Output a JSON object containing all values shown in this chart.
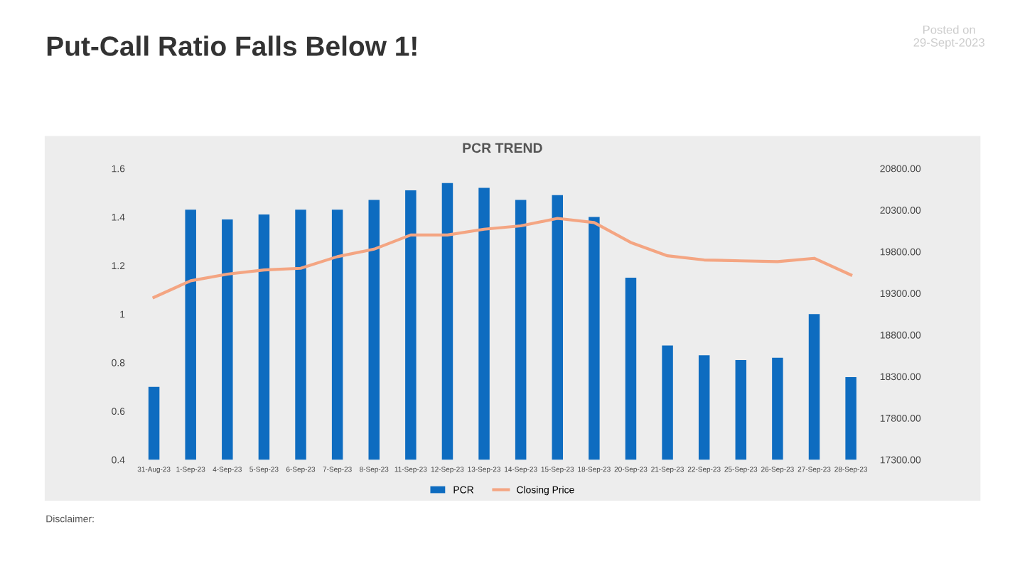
{
  "chart_data": {
    "type": "bar",
    "title": "Put-Call Ratio Falls Below 1!",
    "subtitle": "PCR TREND",
    "categories": [
      "31-Aug-23",
      "1-Sep-23",
      "4-Sep-23",
      "5-Sep-23",
      "6-Sep-23",
      "7-Sep-23",
      "8-Sep-23",
      "11-Sep-23",
      "12-Sep-23",
      "13-Sep-23",
      "14-Sep-23",
      "15-Sep-23",
      "18-Sep-23",
      "20-Sep-23",
      "21-Sep-23",
      "22-Sep-23",
      "25-Sep-23",
      "26-Sep-23",
      "27-Sep-23",
      "28-Sep-23"
    ],
    "series": [
      {
        "name": "PCR",
        "color": "#0e6cc0",
        "values": [
          0.7,
          1.43,
          1.39,
          1.41,
          1.43,
          1.43,
          1.47,
          1.51,
          1.54,
          1.52,
          1.47,
          1.49,
          1.4,
          1.15,
          0.87,
          0.83,
          0.81,
          0.82,
          1.0,
          0.74
        ]
      },
      {
        "name": "Closing Price",
        "type": "line",
        "axis": "y2",
        "color": "#f4a582",
        "values": [
          19250,
          19450,
          19530,
          19580,
          19600,
          19740,
          19830,
          20000,
          20000,
          20070,
          20110,
          20200,
          20150,
          19910,
          19750,
          19700,
          19690,
          19680,
          19720,
          19520
        ]
      }
    ],
    "ylim": [
      0.4,
      1.6
    ],
    "yticks": [
      0.4,
      0.6,
      0.8,
      1,
      1.2,
      1.4,
      1.6
    ],
    "y2lim": [
      17300,
      20800
    ],
    "y2ticks": [
      {
        "value": 17300,
        "label": "17300.00"
      },
      {
        "value": 17800,
        "label": "17800.00"
      },
      {
        "value": 18300,
        "label": "18300.00"
      },
      {
        "value": 18800,
        "label": "18800.00"
      },
      {
        "value": 19300,
        "label": "19300.00"
      },
      {
        "value": 19800,
        "label": "19800.00"
      },
      {
        "value": 20300,
        "label": "20300.00"
      },
      {
        "value": 20800,
        "label": "20800.00"
      }
    ],
    "legend": "bottom",
    "grid": false,
    "annotations": [
      "Posted on\n29-Sept-2023",
      "Disclaimer:"
    ]
  }
}
